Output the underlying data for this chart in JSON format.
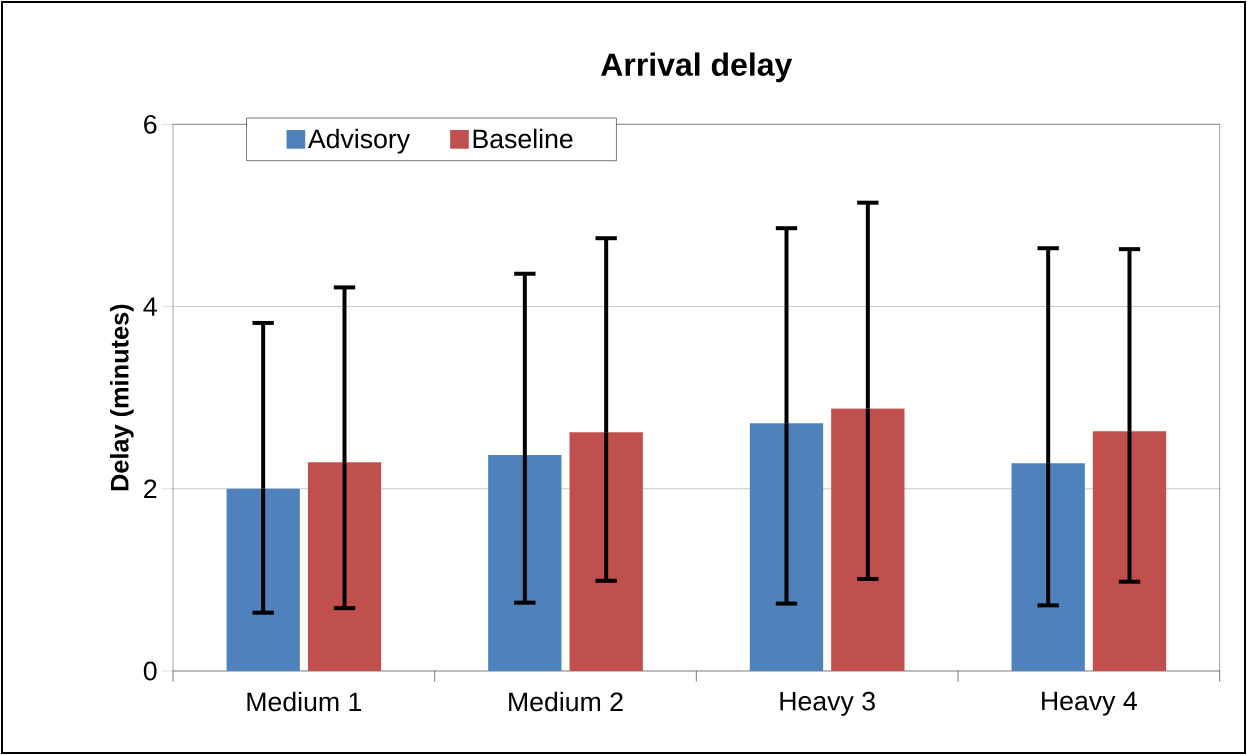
{
  "chart_data": {
    "type": "bar",
    "title": "Arrival delay",
    "ylabel": "Delay (minutes)",
    "categories": [
      "Medium 1",
      "Medium 2",
      "Heavy 3",
      "Heavy 4"
    ],
    "series": [
      {
        "name": "Advisory",
        "color": "#4f81bd",
        "values": [
          2.0,
          2.37,
          2.72,
          2.28
        ],
        "errors": [
          [
            0.64,
            3.82
          ],
          [
            0.75,
            4.36
          ],
          [
            0.74,
            4.86
          ],
          [
            0.72,
            4.64
          ]
        ]
      },
      {
        "name": "Baseline",
        "color": "#c0504d",
        "values": [
          2.29,
          2.62,
          2.88,
          2.63
        ],
        "errors": [
          [
            0.69,
            4.21
          ],
          [
            0.99,
            4.75
          ],
          [
            1.01,
            5.14
          ],
          [
            0.98,
            4.63
          ]
        ]
      }
    ],
    "ylim": [
      0,
      6
    ],
    "yticks": [
      0,
      2,
      4,
      6
    ],
    "grid": "y",
    "legend": "top left"
  }
}
